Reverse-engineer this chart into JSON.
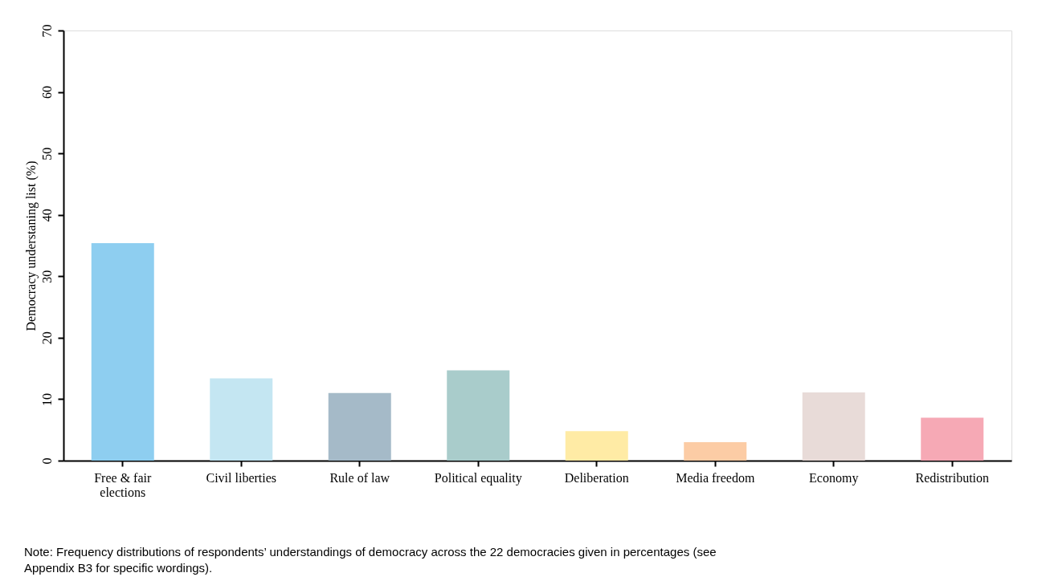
{
  "chart_data": {
    "type": "bar",
    "ylabel": "Democracy understaning list (%)",
    "categories": [
      "Free & fair elections",
      "Civil liberties",
      "Rule of law",
      "Political equality",
      "Deliberation",
      "Media freedom",
      "Economy",
      "Redistribution"
    ],
    "values": [
      35.4,
      13.4,
      11.0,
      14.7,
      4.8,
      3.0,
      11.1,
      7.0
    ],
    "colors": [
      "#8ecef0",
      "#c4e6f2",
      "#a5bac8",
      "#a9cccb",
      "#ffeba5",
      "#fccca5",
      "#e8dbd8",
      "#f6a9b5"
    ],
    "ylim": [
      0,
      70
    ],
    "yticks": [
      0,
      10,
      20,
      30,
      40,
      50,
      60,
      70
    ],
    "grid": false,
    "legend": false,
    "annotations": [
      "Note: Frequency distributions of respondents’ understandings of democracy across the 22 democracies given in percentages (see Appendix B3 for specific wordings)."
    ]
  }
}
